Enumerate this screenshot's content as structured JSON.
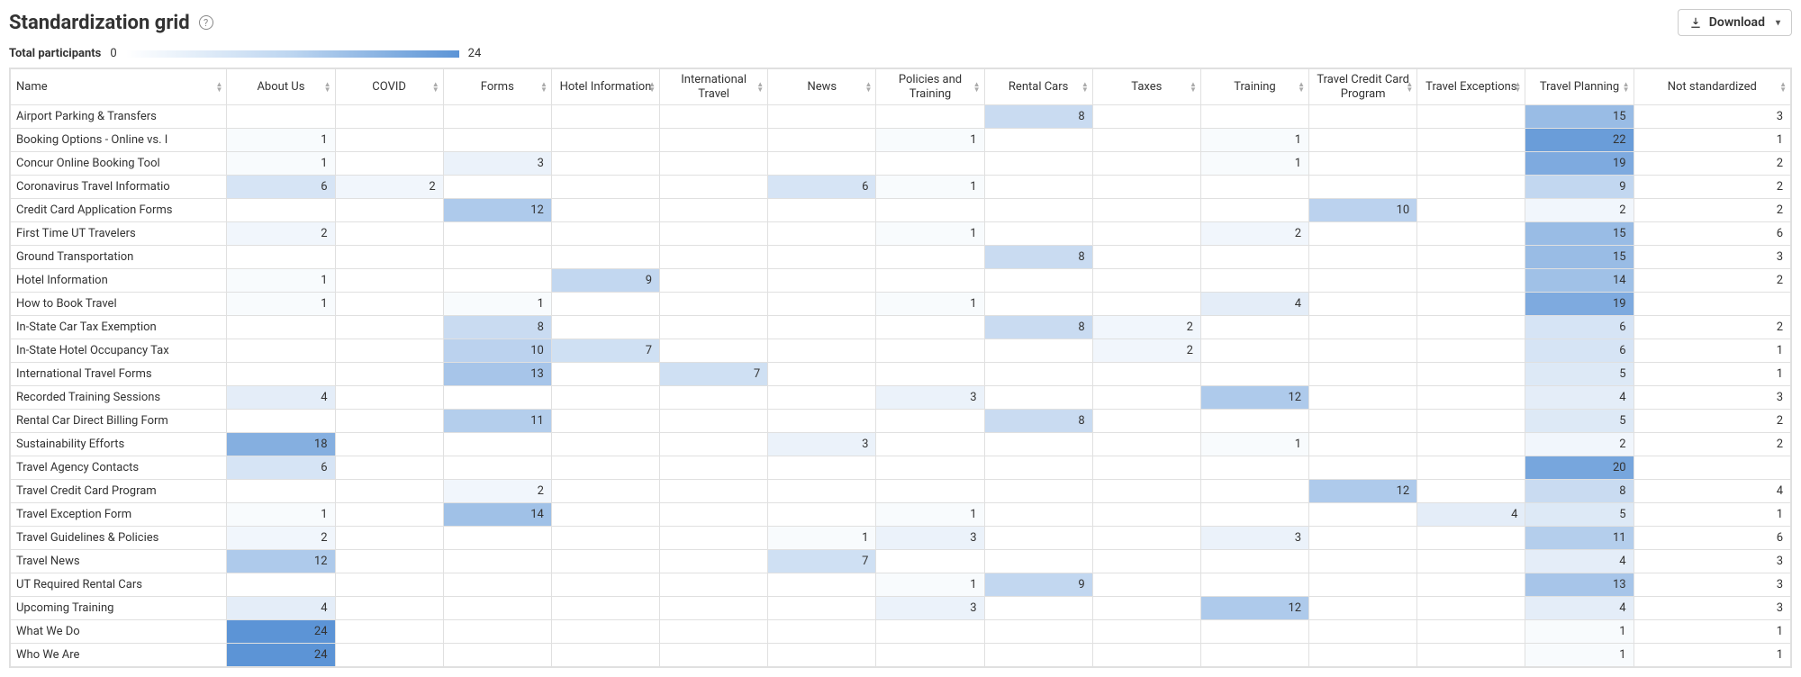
{
  "title": "Standardization grid",
  "download_label": "Download",
  "participants_label": "Total participants",
  "participants_min": "0",
  "participants_max": "24",
  "heat": {
    "min": 0,
    "max": 24,
    "start_color": "#ffffff",
    "end_color": "#5c94d6"
  },
  "columns": [
    "Name",
    "About Us",
    "COVID",
    "Forms",
    "Hotel Information",
    "International Travel",
    "News",
    "Policies and Training",
    "Rental Cars",
    "Taxes",
    "Training",
    "Travel Credit Card Program",
    "Travel Exceptions",
    "Travel Planning",
    "Not standardized"
  ],
  "rows": [
    {
      "name": "Airport Parking & Transfers",
      "v": [
        null,
        null,
        null,
        null,
        null,
        null,
        null,
        8,
        null,
        null,
        null,
        null,
        15,
        3
      ]
    },
    {
      "name": "Booking Options - Online vs. I",
      "v": [
        1,
        null,
        null,
        null,
        null,
        null,
        1,
        null,
        null,
        1,
        null,
        null,
        22,
        1
      ]
    },
    {
      "name": "Concur Online Booking Tool",
      "v": [
        1,
        null,
        3,
        null,
        null,
        null,
        null,
        null,
        null,
        1,
        null,
        null,
        19,
        2
      ]
    },
    {
      "name": "Coronavirus Travel Informatio",
      "v": [
        6,
        2,
        null,
        null,
        null,
        6,
        1,
        null,
        null,
        null,
        null,
        null,
        9,
        2
      ]
    },
    {
      "name": "Credit Card Application Forms",
      "v": [
        null,
        null,
        12,
        null,
        null,
        null,
        null,
        null,
        null,
        null,
        10,
        null,
        2,
        2
      ]
    },
    {
      "name": "First Time UT Travelers",
      "v": [
        2,
        null,
        null,
        null,
        null,
        null,
        1,
        null,
        null,
        2,
        null,
        null,
        15,
        6
      ]
    },
    {
      "name": "Ground Transportation",
      "v": [
        null,
        null,
        null,
        null,
        null,
        null,
        null,
        8,
        null,
        null,
        null,
        null,
        15,
        3
      ]
    },
    {
      "name": "Hotel Information",
      "v": [
        1,
        null,
        null,
        9,
        null,
        null,
        null,
        null,
        null,
        null,
        null,
        null,
        14,
        2
      ]
    },
    {
      "name": "How to Book Travel",
      "v": [
        1,
        null,
        1,
        null,
        null,
        null,
        1,
        null,
        null,
        4,
        null,
        null,
        19,
        null
      ]
    },
    {
      "name": "In-State Car Tax Exemption",
      "v": [
        null,
        null,
        8,
        null,
        null,
        null,
        null,
        8,
        2,
        null,
        null,
        null,
        6,
        2
      ]
    },
    {
      "name": "In-State Hotel Occupancy Tax",
      "v": [
        null,
        null,
        10,
        7,
        null,
        null,
        null,
        null,
        2,
        null,
        null,
        null,
        6,
        1
      ]
    },
    {
      "name": "International Travel Forms",
      "v": [
        null,
        null,
        13,
        null,
        7,
        null,
        null,
        null,
        null,
        null,
        null,
        null,
        5,
        1
      ]
    },
    {
      "name": "Recorded Training Sessions",
      "v": [
        4,
        null,
        null,
        null,
        null,
        null,
        3,
        null,
        null,
        12,
        null,
        null,
        4,
        3
      ]
    },
    {
      "name": "Rental Car Direct Billing Form",
      "v": [
        null,
        null,
        11,
        null,
        null,
        null,
        null,
        8,
        null,
        null,
        null,
        null,
        5,
        2
      ]
    },
    {
      "name": "Sustainability Efforts",
      "v": [
        18,
        null,
        null,
        null,
        null,
        3,
        null,
        null,
        null,
        1,
        null,
        null,
        2,
        2
      ]
    },
    {
      "name": "Travel Agency Contacts",
      "v": [
        6,
        null,
        null,
        null,
        null,
        null,
        null,
        null,
        null,
        null,
        null,
        null,
        20,
        null
      ]
    },
    {
      "name": "Travel Credit Card Program",
      "v": [
        null,
        null,
        2,
        null,
        null,
        null,
        null,
        null,
        null,
        null,
        12,
        null,
        8,
        4
      ]
    },
    {
      "name": "Travel Exception Form",
      "v": [
        1,
        null,
        14,
        null,
        null,
        null,
        1,
        null,
        null,
        null,
        null,
        4,
        5,
        1
      ]
    },
    {
      "name": "Travel Guidelines & Policies",
      "v": [
        2,
        null,
        null,
        null,
        null,
        1,
        3,
        null,
        null,
        3,
        null,
        null,
        11,
        6
      ]
    },
    {
      "name": "Travel News",
      "v": [
        12,
        null,
        null,
        null,
        null,
        7,
        null,
        null,
        null,
        null,
        null,
        null,
        4,
        3
      ]
    },
    {
      "name": "UT Required Rental Cars",
      "v": [
        null,
        null,
        null,
        null,
        null,
        null,
        1,
        9,
        null,
        null,
        null,
        null,
        13,
        3
      ]
    },
    {
      "name": "Upcoming Training",
      "v": [
        4,
        null,
        null,
        null,
        null,
        null,
        3,
        null,
        null,
        12,
        null,
        null,
        4,
        3
      ]
    },
    {
      "name": "What We Do",
      "v": [
        24,
        null,
        null,
        null,
        null,
        null,
        null,
        null,
        null,
        null,
        null,
        null,
        1,
        1
      ]
    },
    {
      "name": "Who We Are",
      "v": [
        24,
        null,
        null,
        null,
        null,
        null,
        null,
        null,
        null,
        null,
        null,
        null,
        1,
        1
      ]
    }
  ]
}
